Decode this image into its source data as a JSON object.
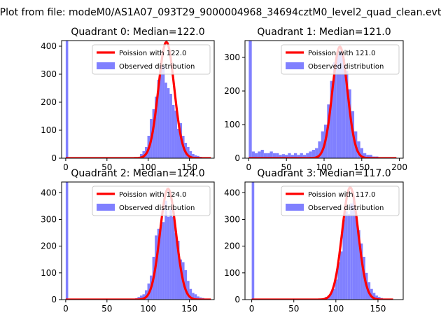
{
  "figure": {
    "suptitle": "Plot from file: modeM0/AS1A07_093T29_9000004968_34694cztM0_level2_quad_clean.evt"
  },
  "chart_data": [
    {
      "type": "bar",
      "title": "Quadrant 0: Median=122.0",
      "xlim": [
        -5,
        180
      ],
      "ylim": [
        0,
        420
      ],
      "xticks": [
        "0",
        "50",
        "100",
        "150"
      ],
      "yticks": [
        "0",
        "100",
        "200",
        "300",
        "400"
      ],
      "median": 122.0,
      "legend": [
        "Poission with 122.0",
        "Observed distribution"
      ],
      "bins": [
        {
          "x": 0,
          "w": 3,
          "y": 420
        },
        {
          "x": 90,
          "w": 3,
          "y": 15
        },
        {
          "x": 93,
          "w": 3,
          "y": 25
        },
        {
          "x": 96,
          "w": 3,
          "y": 40
        },
        {
          "x": 99,
          "w": 3,
          "y": 80
        },
        {
          "x": 102,
          "w": 3,
          "y": 140
        },
        {
          "x": 105,
          "w": 3,
          "y": 175
        },
        {
          "x": 108,
          "w": 3,
          "y": 220
        },
        {
          "x": 111,
          "w": 3,
          "y": 280
        },
        {
          "x": 114,
          "w": 3,
          "y": 320
        },
        {
          "x": 117,
          "w": 3,
          "y": 330
        },
        {
          "x": 120,
          "w": 3,
          "y": 270
        },
        {
          "x": 123,
          "w": 3,
          "y": 250
        },
        {
          "x": 126,
          "w": 3,
          "y": 230
        },
        {
          "x": 129,
          "w": 3,
          "y": 190
        },
        {
          "x": 132,
          "w": 3,
          "y": 170
        },
        {
          "x": 135,
          "w": 3,
          "y": 105
        },
        {
          "x": 138,
          "w": 3,
          "y": 125
        },
        {
          "x": 141,
          "w": 3,
          "y": 80
        },
        {
          "x": 144,
          "w": 3,
          "y": 55
        },
        {
          "x": 147,
          "w": 3,
          "y": 40
        },
        {
          "x": 150,
          "w": 3,
          "y": 25
        },
        {
          "x": 153,
          "w": 3,
          "y": 15
        },
        {
          "x": 156,
          "w": 3,
          "y": 10
        },
        {
          "x": 159,
          "w": 3,
          "y": 8
        },
        {
          "x": 162,
          "w": 3,
          "y": 5
        },
        {
          "x": 165,
          "w": 3,
          "y": 3
        },
        {
          "x": 168,
          "w": 3,
          "y": 2
        }
      ],
      "curve": {
        "x0": 0,
        "x1": 176,
        "mu": 122,
        "sigma": 9.6,
        "peak": 415
      }
    },
    {
      "type": "bar",
      "title": "Quadrant 1: Median=121.0",
      "xlim": [
        -5,
        205
      ],
      "ylim": [
        0,
        350
      ],
      "xticks": [
        "0",
        "50",
        "100",
        "150",
        "200"
      ],
      "yticks": [
        "0",
        "100",
        "200",
        "300"
      ],
      "median": 121.0,
      "legend": [
        "Poission with 121.0",
        "Observed distribution"
      ],
      "bins": [
        {
          "x": 0,
          "w": 4,
          "y": 350
        },
        {
          "x": 4,
          "w": 4,
          "y": 20
        },
        {
          "x": 8,
          "w": 4,
          "y": 15
        },
        {
          "x": 12,
          "w": 4,
          "y": 20
        },
        {
          "x": 16,
          "w": 4,
          "y": 25
        },
        {
          "x": 20,
          "w": 4,
          "y": 15
        },
        {
          "x": 24,
          "w": 4,
          "y": 15
        },
        {
          "x": 28,
          "w": 4,
          "y": 20
        },
        {
          "x": 32,
          "w": 4,
          "y": 15
        },
        {
          "x": 36,
          "w": 4,
          "y": 15
        },
        {
          "x": 40,
          "w": 4,
          "y": 10
        },
        {
          "x": 44,
          "w": 4,
          "y": 12
        },
        {
          "x": 48,
          "w": 4,
          "y": 10
        },
        {
          "x": 52,
          "w": 4,
          "y": 15
        },
        {
          "x": 56,
          "w": 4,
          "y": 10
        },
        {
          "x": 60,
          "w": 4,
          "y": 15
        },
        {
          "x": 64,
          "w": 4,
          "y": 10
        },
        {
          "x": 68,
          "w": 4,
          "y": 15
        },
        {
          "x": 72,
          "w": 4,
          "y": 10
        },
        {
          "x": 76,
          "w": 4,
          "y": 15
        },
        {
          "x": 80,
          "w": 4,
          "y": 20
        },
        {
          "x": 84,
          "w": 4,
          "y": 25
        },
        {
          "x": 88,
          "w": 4,
          "y": 30
        },
        {
          "x": 92,
          "w": 4,
          "y": 50
        },
        {
          "x": 96,
          "w": 4,
          "y": 80
        },
        {
          "x": 100,
          "w": 4,
          "y": 100
        },
        {
          "x": 104,
          "w": 4,
          "y": 160
        },
        {
          "x": 108,
          "w": 4,
          "y": 230
        },
        {
          "x": 112,
          "w": 4,
          "y": 285
        },
        {
          "x": 116,
          "w": 4,
          "y": 310
        },
        {
          "x": 120,
          "w": 4,
          "y": 320
        },
        {
          "x": 124,
          "w": 4,
          "y": 295
        },
        {
          "x": 128,
          "w": 4,
          "y": 260
        },
        {
          "x": 132,
          "w": 4,
          "y": 205
        },
        {
          "x": 136,
          "w": 4,
          "y": 140
        },
        {
          "x": 140,
          "w": 4,
          "y": 80
        },
        {
          "x": 144,
          "w": 4,
          "y": 50
        },
        {
          "x": 148,
          "w": 4,
          "y": 30
        },
        {
          "x": 152,
          "w": 4,
          "y": 15
        },
        {
          "x": 156,
          "w": 4,
          "y": 10
        },
        {
          "x": 160,
          "w": 4,
          "y": 10
        },
        {
          "x": 164,
          "w": 4,
          "y": 5
        },
        {
          "x": 168,
          "w": 4,
          "y": 5
        },
        {
          "x": 172,
          "w": 4,
          "y": 3
        }
      ],
      "curve": {
        "x0": 0,
        "x1": 196,
        "mu": 121,
        "sigma": 10.0,
        "peak": 332
      }
    },
    {
      "type": "bar",
      "title": "Quadrant 2: Median=124.0",
      "xlim": [
        -5,
        180
      ],
      "ylim": [
        0,
        440
      ],
      "xticks": [
        "0",
        "50",
        "100",
        "150"
      ],
      "yticks": [
        "0",
        "100",
        "200",
        "300",
        "400"
      ],
      "median": 124.0,
      "legend": [
        "Poission with 124.0",
        "Observed distribution"
      ],
      "bins": [
        {
          "x": 0,
          "w": 3,
          "y": 440
        },
        {
          "x": 84,
          "w": 3,
          "y": 5
        },
        {
          "x": 87,
          "w": 3,
          "y": 10
        },
        {
          "x": 90,
          "w": 3,
          "y": 15
        },
        {
          "x": 93,
          "w": 3,
          "y": 20
        },
        {
          "x": 96,
          "w": 3,
          "y": 35
        },
        {
          "x": 99,
          "w": 3,
          "y": 60
        },
        {
          "x": 102,
          "w": 3,
          "y": 90
        },
        {
          "x": 105,
          "w": 3,
          "y": 160
        },
        {
          "x": 108,
          "w": 3,
          "y": 240
        },
        {
          "x": 111,
          "w": 3,
          "y": 265
        },
        {
          "x": 114,
          "w": 3,
          "y": 280
        },
        {
          "x": 117,
          "w": 3,
          "y": 290
        },
        {
          "x": 120,
          "w": 3,
          "y": 370
        },
        {
          "x": 123,
          "w": 3,
          "y": 310
        },
        {
          "x": 126,
          "w": 3,
          "y": 340
        },
        {
          "x": 129,
          "w": 3,
          "y": 310
        },
        {
          "x": 132,
          "w": 3,
          "y": 250
        },
        {
          "x": 135,
          "w": 3,
          "y": 220
        },
        {
          "x": 138,
          "w": 3,
          "y": 150
        },
        {
          "x": 141,
          "w": 3,
          "y": 140
        },
        {
          "x": 144,
          "w": 3,
          "y": 110
        },
        {
          "x": 147,
          "w": 3,
          "y": 70
        },
        {
          "x": 150,
          "w": 3,
          "y": 40
        },
        {
          "x": 153,
          "w": 3,
          "y": 25
        },
        {
          "x": 156,
          "w": 3,
          "y": 20
        },
        {
          "x": 159,
          "w": 3,
          "y": 12
        },
        {
          "x": 162,
          "w": 3,
          "y": 8
        },
        {
          "x": 165,
          "w": 3,
          "y": 6
        },
        {
          "x": 168,
          "w": 3,
          "y": 4
        }
      ],
      "curve": {
        "x0": 0,
        "x1": 176,
        "mu": 124,
        "sigma": 9.7,
        "peak": 415
      }
    },
    {
      "type": "bar",
      "title": "Quadrant 3: Median=117.0",
      "xlim": [
        -8,
        180
      ],
      "ylim": [
        0,
        440
      ],
      "xticks": [
        "0",
        "50",
        "100",
        "150"
      ],
      "yticks": [
        "0",
        "100",
        "200",
        "300",
        "400"
      ],
      "median": 117.0,
      "legend": [
        "Poission with 117.0",
        "Observed distribution"
      ],
      "bins": [
        {
          "x": 0,
          "w": 3,
          "y": 440
        },
        {
          "x": 84,
          "w": 3,
          "y": 5
        },
        {
          "x": 87,
          "w": 3,
          "y": 10
        },
        {
          "x": 90,
          "w": 3,
          "y": 15
        },
        {
          "x": 93,
          "w": 3,
          "y": 25
        },
        {
          "x": 96,
          "w": 3,
          "y": 40
        },
        {
          "x": 99,
          "w": 3,
          "y": 75
        },
        {
          "x": 102,
          "w": 3,
          "y": 140
        },
        {
          "x": 105,
          "w": 3,
          "y": 180
        },
        {
          "x": 108,
          "w": 3,
          "y": 300
        },
        {
          "x": 111,
          "w": 3,
          "y": 330
        },
        {
          "x": 114,
          "w": 3,
          "y": 320
        },
        {
          "x": 117,
          "w": 3,
          "y": 360
        },
        {
          "x": 120,
          "w": 3,
          "y": 380
        },
        {
          "x": 123,
          "w": 3,
          "y": 310
        },
        {
          "x": 126,
          "w": 3,
          "y": 260
        },
        {
          "x": 129,
          "w": 3,
          "y": 210
        },
        {
          "x": 132,
          "w": 3,
          "y": 160
        },
        {
          "x": 135,
          "w": 3,
          "y": 100
        },
        {
          "x": 138,
          "w": 3,
          "y": 65
        },
        {
          "x": 141,
          "w": 3,
          "y": 40
        },
        {
          "x": 144,
          "w": 3,
          "y": 25
        },
        {
          "x": 147,
          "w": 3,
          "y": 15
        },
        {
          "x": 150,
          "w": 3,
          "y": 10
        },
        {
          "x": 153,
          "w": 3,
          "y": 6
        },
        {
          "x": 156,
          "w": 3,
          "y": 4
        },
        {
          "x": 159,
          "w": 3,
          "y": 3
        },
        {
          "x": 162,
          "w": 3,
          "y": 2
        }
      ],
      "curve": {
        "x0": 0,
        "x1": 168,
        "mu": 117,
        "sigma": 9.5,
        "peak": 420
      }
    }
  ],
  "colors": {
    "hist": "#8080ff",
    "curve": "#ff0000",
    "curve_halo": "#ff9999",
    "axis": "#000000",
    "legend_border": "#cccccc"
  }
}
